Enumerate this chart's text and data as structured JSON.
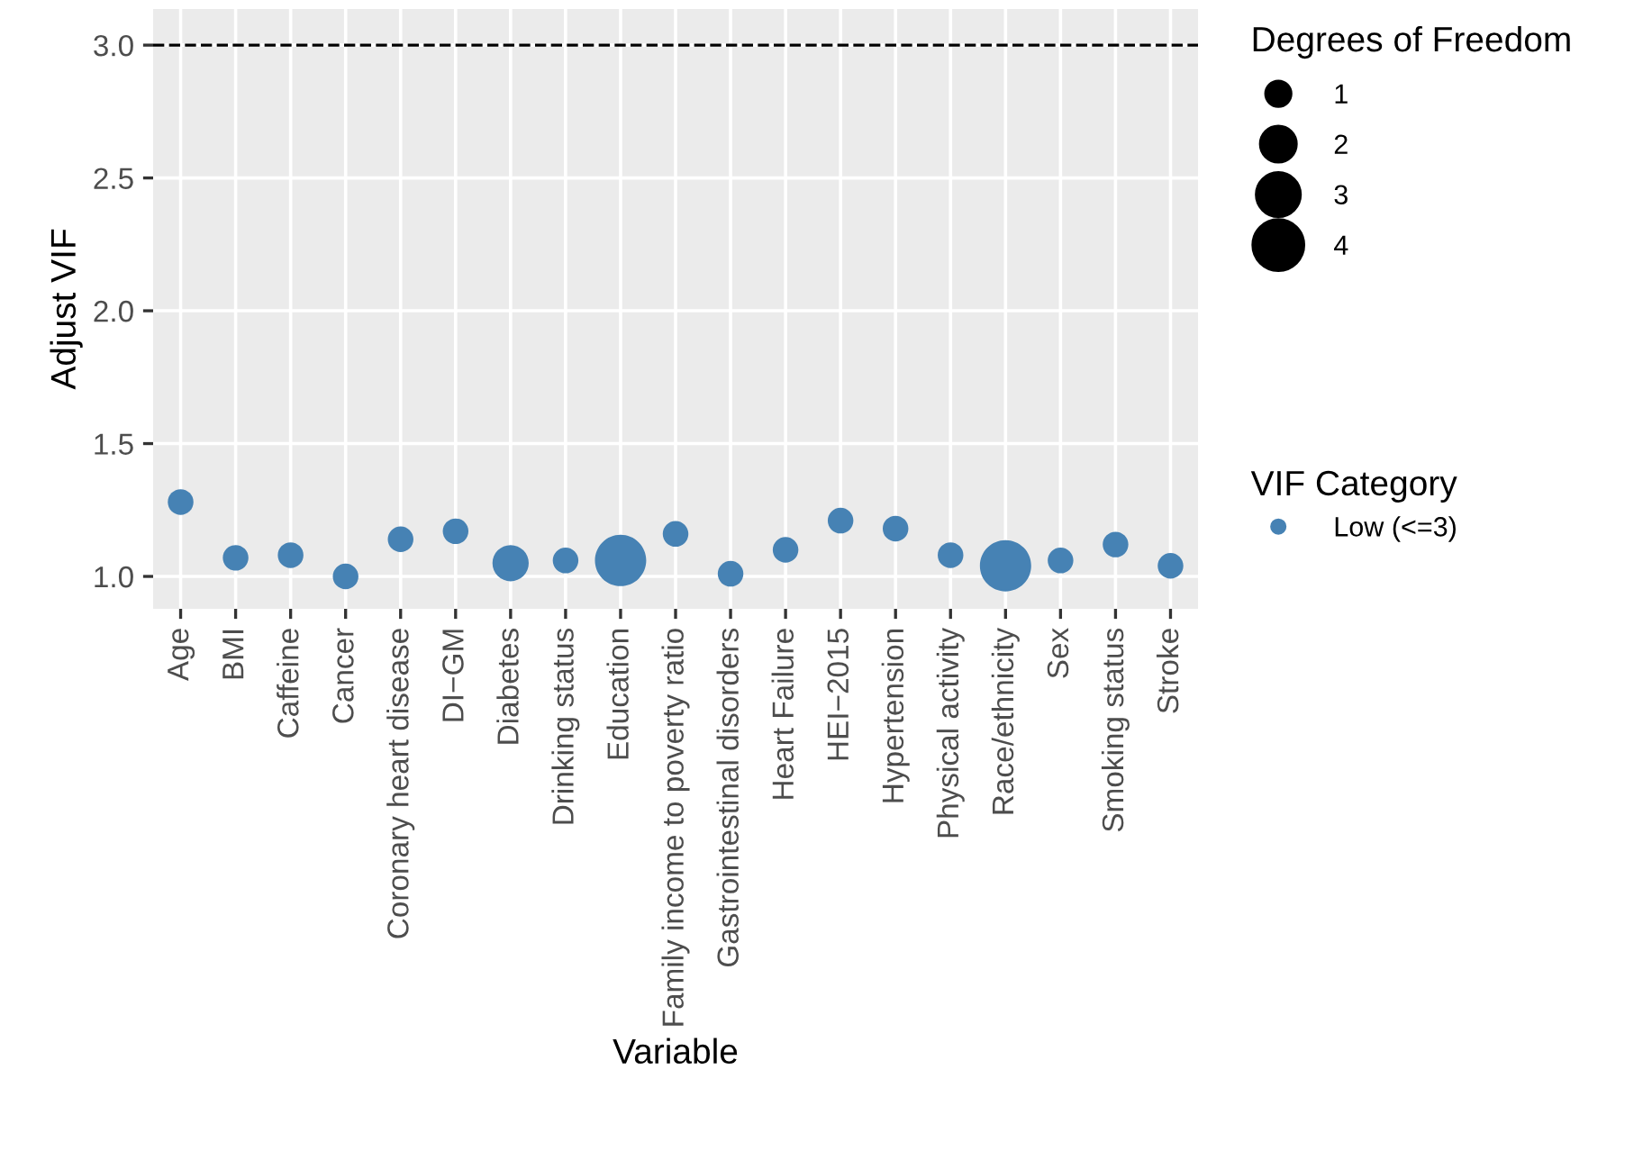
{
  "chart_data": {
    "type": "bubble",
    "xlabel": "Variable",
    "ylabel": "Adjust VIF",
    "legend_title": "VIF Category",
    "categories": [
      "Age",
      "BMI",
      "Caffeine",
      "Cancer",
      "Coronary heart disease",
      "DI−GM",
      "Diabetes",
      "Drinking status",
      "Education",
      "Family income to poverty ratio",
      "Gastrointestinal disorders",
      "Heart Failure",
      "HEI−2015",
      "Hypertension",
      "Physical activity",
      "Race/ethnicity",
      "Sex",
      "Smoking status",
      "Stroke"
    ],
    "series": [
      {
        "name": "Low (<=3)",
        "color": "#4682b4",
        "values": [
          1.28,
          1.07,
          1.08,
          1.0,
          1.14,
          1.17,
          1.05,
          1.06,
          1.06,
          1.16,
          1.01,
          1.1,
          1.21,
          1.18,
          1.08,
          1.04,
          1.06,
          1.12,
          1.04
        ],
        "sizes": [
          1,
          1,
          1,
          1,
          1,
          1,
          2,
          1,
          4,
          1,
          1,
          1,
          1,
          1,
          1,
          4,
          1,
          1,
          1
        ]
      }
    ],
    "size_legend": [
      1,
      2,
      3,
      4
    ],
    "annotations": [
      "Degrees of Freedom"
    ],
    "ylim": [
      0.878,
      3.136
    ],
    "yticks": [
      {
        "value": 1.0,
        "label": "1.0"
      },
      {
        "value": 1.5,
        "label": "1.5"
      },
      {
        "value": 2.0,
        "label": "2.0"
      },
      {
        "value": 2.5,
        "label": "2.5"
      },
      {
        "value": 3.0,
        "label": "3.0"
      }
    ],
    "ref_lines": [
      {
        "axis": "y",
        "value": 3.0,
        "color": "#000000",
        "line_style": "dashed"
      }
    ],
    "grid": true,
    "legend": "right"
  }
}
